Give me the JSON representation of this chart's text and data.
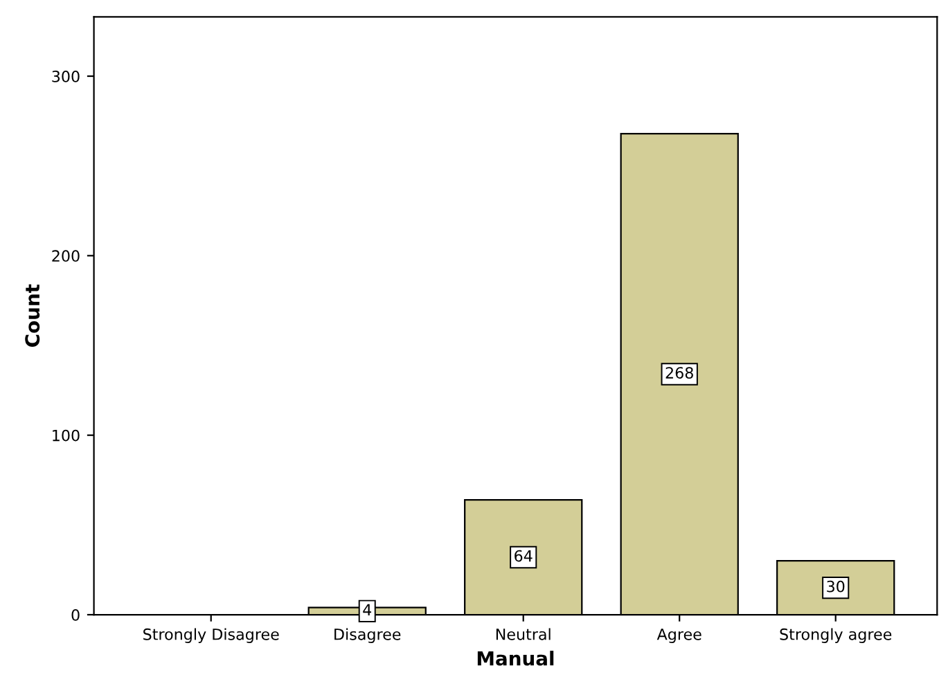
{
  "chart_data": {
    "type": "bar",
    "xlabel": "Manual",
    "ylabel": "Count",
    "categories": [
      "Strongly Disagree",
      "Disagree",
      "Neutral",
      "Agree",
      "Strongly agree"
    ],
    "values": [
      null,
      4,
      64,
      268,
      30
    ],
    "value_labels": [
      null,
      "4",
      "64",
      "268",
      "30"
    ],
    "color": "#d3ce97",
    "ylim": [
      0,
      333
    ],
    "yticks": [
      0,
      100,
      200,
      300
    ],
    "grid": false
  }
}
